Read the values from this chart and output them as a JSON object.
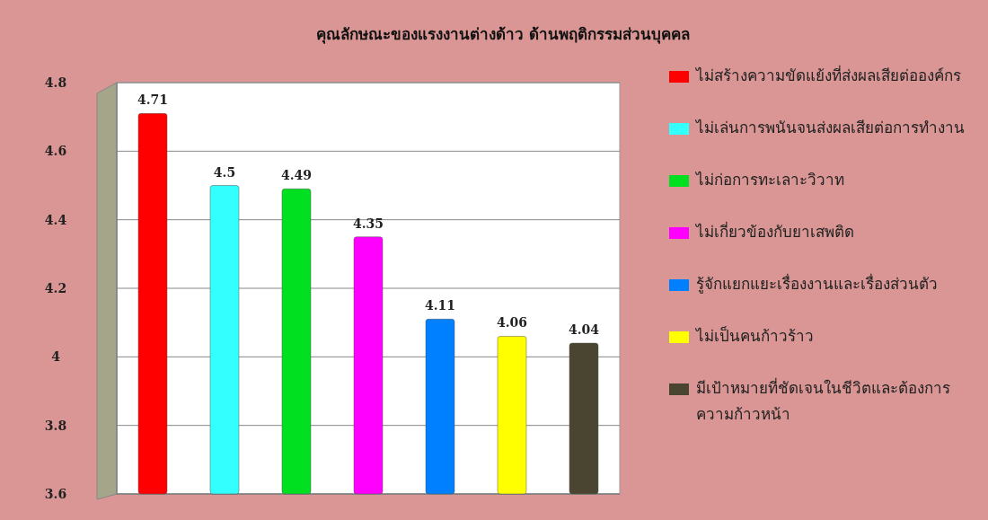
{
  "chart_data": {
    "type": "bar",
    "title": "คุณลักษณะของแรงงานต่างด้าว ด้านพฤติกรรมส่วนบุคคล",
    "categories": [
      null,
      null,
      null,
      null,
      null,
      null,
      null
    ],
    "series": [
      {
        "name": "ไม่สร้างความขัดแย้งที่ส่งผลเสียต่อองค์กร",
        "color": "#ff0000",
        "values": [
          4.71,
          null,
          null,
          null,
          null,
          null,
          null
        ]
      },
      {
        "name": "ไม่เล่นการพนันจนส่งผลเสียต่อการทำงาน",
        "color": "#33ffff",
        "values": [
          null,
          4.5,
          null,
          null,
          null,
          null,
          null
        ]
      },
      {
        "name": "ไม่ก่อการทะเลาะวิวาท",
        "color": "#00e020",
        "values": [
          null,
          null,
          4.49,
          null,
          null,
          null,
          null
        ]
      },
      {
        "name": "ไม่เกี่ยวข้องกับยาเสพติด",
        "color": "#ff00ff",
        "values": [
          null,
          null,
          null,
          4.35,
          null,
          null,
          null
        ]
      },
      {
        "name": "รู้จักแยกแยะเรื่องงานและเรื่องส่วนตัว",
        "color": "#0080ff",
        "values": [
          null,
          null,
          null,
          null,
          4.11,
          null,
          null
        ]
      },
      {
        "name": "ไม่เป็นคนก้าวร้าว",
        "color": "#ffff00",
        "values": [
          null,
          null,
          null,
          null,
          null,
          4.06,
          null
        ]
      },
      {
        "name": "มีเป้าหมายที่ชัดเจนในชีวิตและต้องการความก้าวหน้า",
        "color": "#4a4530",
        "values": [
          null,
          null,
          null,
          null,
          null,
          null,
          4.04
        ]
      }
    ],
    "ylim": [
      3.6,
      4.8
    ],
    "yticks": [
      3.6,
      3.8,
      4,
      4.2,
      4.4,
      4.6,
      4.8
    ],
    "grid": "y",
    "legend": "right",
    "tick_labels": "y",
    "data_labels": true
  }
}
